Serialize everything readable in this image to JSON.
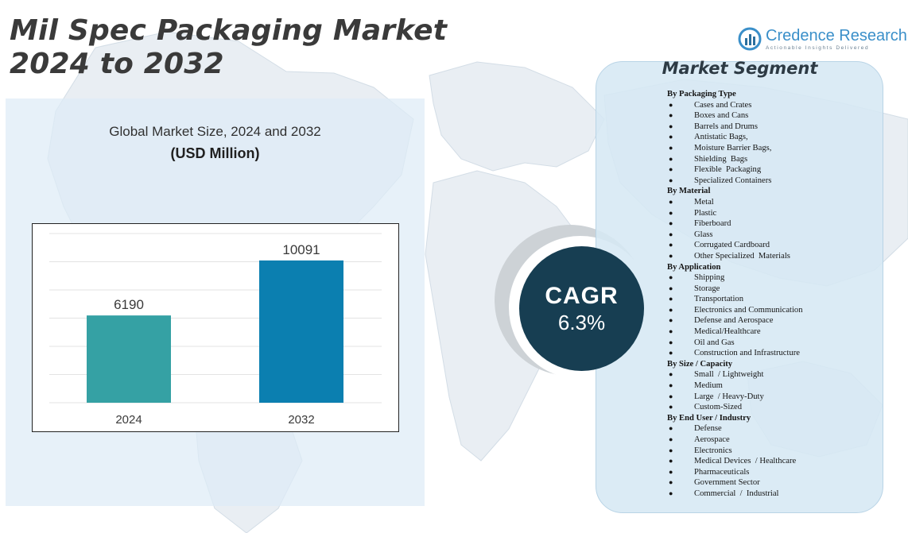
{
  "title": {
    "line1": "Mil Spec Packaging Market",
    "line2": "2024 to 2032"
  },
  "logo": {
    "name": "Credence Research",
    "tagline": "Actionable Insights Delivered",
    "brand_color": "#3a8fc9"
  },
  "chart_title": "Global Market Size,  2024 and 2032",
  "chart_unit": "(USD Million)",
  "chart_data": {
    "type": "bar",
    "categories": [
      "2024",
      "2032"
    ],
    "values": [
      6190,
      10091
    ],
    "title": "Global Market Size,  2024 and 2032",
    "subtitle": "(USD Million)",
    "xlabel": "",
    "ylabel": "",
    "ylim": [
      0,
      12000
    ],
    "grid": true,
    "legend": "none",
    "colors": [
      "#35a1a4",
      "#0b7fb0"
    ],
    "data_labels": [
      "6190",
      "10091"
    ]
  },
  "cagr": {
    "label": "CAGR",
    "value": "6.3%"
  },
  "segment_title": "Market Segment",
  "segments": [
    {
      "heading": "By Packaging Type",
      "items": [
        "Cases and Crates",
        "Boxes and Cans",
        "Barrels and Drums",
        "Antistatic Bags,",
        "Moisture Barrier Bags,",
        "Shielding  Bags",
        "Flexible  Packaging",
        "Specialized Containers"
      ]
    },
    {
      "heading": "By Material",
      "items": [
        "Metal",
        "Plastic",
        "Fiberboard",
        "Glass",
        "Corrugated Cardboard",
        "Other Specialized  Materials"
      ]
    },
    {
      "heading": "By Application",
      "items": [
        "Shipping",
        "Storage",
        "Transportation",
        "Electronics and Communication",
        "Defense and Aerospace",
        "Medical/Healthcare",
        "Oil and Gas",
        "Construction and Infrastructure"
      ]
    },
    {
      "heading": "By Size / Capacity",
      "items": [
        "Small  / Lightweight",
        "Medium",
        "Large  / Heavy-Duty",
        "Custom-Sized"
      ]
    },
    {
      "heading": "By End User / Industry",
      "items": [
        "Defense",
        "Aerospace",
        "Electronics",
        "Medical Devices  / Healthcare",
        "Pharmaceuticals",
        "Government Sector",
        "Commercial  /  Industrial"
      ]
    }
  ]
}
